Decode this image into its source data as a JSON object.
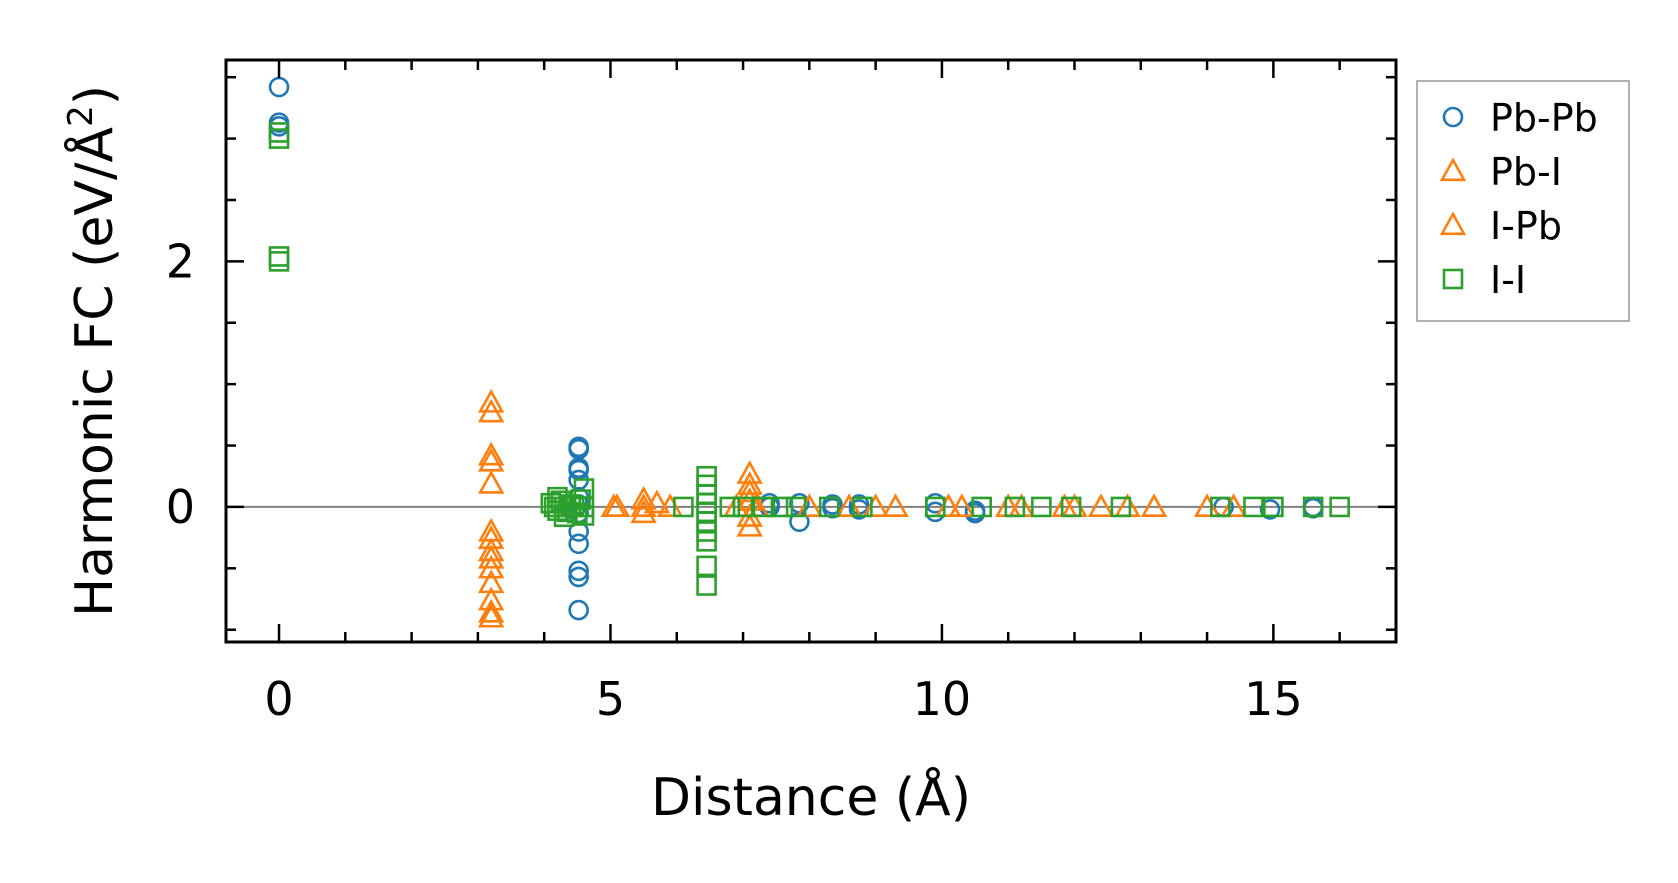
{
  "chart_data": {
    "type": "scatter",
    "title": "",
    "xlabel": "Distance (Å)",
    "ylabel_main": "Harmonic FC (eV/Å",
    "ylabel_sup": "2",
    "ylabel_end": ")",
    "xlim": [
      -0.8,
      16.85
    ],
    "ylim": [
      -1.1,
      3.64
    ],
    "xticks": [
      0,
      5,
      10,
      15
    ],
    "xtick_labels": [
      "0",
      "5",
      "10",
      "15"
    ],
    "yticks": [
      0,
      2
    ],
    "ytick_labels": [
      "0",
      "2"
    ],
    "zero_line": true,
    "legend_position": "outside-right",
    "series": [
      {
        "name": "Pb-Pb",
        "marker": "circle",
        "color": "#1f77b4",
        "points": [
          [
            0,
            3.42
          ],
          [
            0,
            3.13
          ],
          [
            0,
            3.1
          ],
          [
            4.52,
            0.49
          ],
          [
            4.52,
            0.47
          ],
          [
            4.52,
            0.32
          ],
          [
            4.52,
            0.3
          ],
          [
            4.52,
            0.22
          ],
          [
            4.52,
            0.08
          ],
          [
            4.52,
            0.02
          ],
          [
            4.52,
            -0.05
          ],
          [
            4.52,
            -0.2
          ],
          [
            4.52,
            -0.3
          ],
          [
            4.52,
            -0.52
          ],
          [
            4.52,
            -0.57
          ],
          [
            4.52,
            -0.84
          ],
          [
            7.4,
            0.03
          ],
          [
            7.4,
            0.0
          ],
          [
            7.85,
            0.03
          ],
          [
            7.85,
            -0.12
          ],
          [
            8.35,
            0.02
          ],
          [
            8.35,
            -0.01
          ],
          [
            8.75,
            0.02
          ],
          [
            8.75,
            -0.02
          ],
          [
            9.9,
            0.03
          ],
          [
            9.9,
            -0.04
          ],
          [
            10.5,
            -0.03
          ],
          [
            10.5,
            -0.05
          ],
          [
            14.25,
            0.0
          ],
          [
            14.95,
            -0.02
          ],
          [
            15.6,
            0.0
          ],
          [
            15.6,
            -0.01
          ]
        ]
      },
      {
        "name": "Pb-I",
        "marker": "triangle",
        "color": "#ff7f0e",
        "points": [
          [
            3.2,
            0.85
          ],
          [
            3.2,
            0.77
          ],
          [
            3.2,
            0.42
          ],
          [
            3.2,
            0.37
          ],
          [
            3.2,
            0.19
          ],
          [
            3.2,
            -0.2
          ],
          [
            3.2,
            -0.26
          ],
          [
            3.2,
            -0.36
          ],
          [
            3.2,
            -0.42
          ],
          [
            3.2,
            -0.5
          ],
          [
            3.2,
            -0.62
          ],
          [
            3.2,
            -0.76
          ],
          [
            3.2,
            -0.86
          ],
          [
            3.2,
            -0.9
          ],
          [
            5.1,
            0.0
          ],
          [
            5.5,
            0.06
          ],
          [
            5.5,
            0.0
          ],
          [
            5.5,
            -0.05
          ],
          [
            5.7,
            0.03
          ],
          [
            5.9,
            0.0
          ],
          [
            7.1,
            0.27
          ],
          [
            7.1,
            0.18
          ],
          [
            7.1,
            0.12
          ],
          [
            7.1,
            0.05
          ],
          [
            7.1,
            -0.08
          ],
          [
            7.1,
            -0.16
          ],
          [
            7.2,
            0.0
          ],
          [
            8.6,
            0.0
          ],
          [
            9.3,
            0.0
          ],
          [
            10.3,
            0.0
          ],
          [
            11.2,
            0.0
          ],
          [
            11.85,
            0.0
          ],
          [
            12.4,
            0.0
          ],
          [
            13.2,
            0.0
          ],
          [
            14.4,
            0.0
          ]
        ]
      },
      {
        "name": "I-Pb",
        "marker": "triangle",
        "color": "#ff7f0e",
        "points": [
          [
            5.05,
            0.0
          ],
          [
            6.9,
            0.0
          ],
          [
            8.0,
            0.0
          ],
          [
            9.0,
            0.0
          ],
          [
            10.1,
            0.0
          ],
          [
            11.0,
            0.0
          ],
          [
            12.0,
            0.0
          ],
          [
            12.8,
            0.0
          ],
          [
            14.0,
            0.0
          ]
        ]
      },
      {
        "name": "I-I",
        "marker": "square",
        "color": "#2ca02c",
        "points": [
          [
            0,
            3.05
          ],
          [
            0,
            3.0
          ],
          [
            0,
            2.04
          ],
          [
            0,
            2.0
          ],
          [
            4.1,
            0.03
          ],
          [
            4.15,
            0.0
          ],
          [
            4.2,
            -0.03
          ],
          [
            4.25,
            0.05
          ],
          [
            4.3,
            0.0
          ],
          [
            4.35,
            -0.04
          ],
          [
            4.4,
            0.02
          ],
          [
            4.45,
            0.0
          ],
          [
            4.5,
            -0.05
          ],
          [
            4.55,
            0.06
          ],
          [
            4.6,
            0.15
          ],
          [
            4.6,
            0.0
          ],
          [
            4.6,
            -0.07
          ],
          [
            4.2,
            0.08
          ],
          [
            4.3,
            -0.08
          ],
          [
            6.45,
            0.25
          ],
          [
            6.45,
            0.18
          ],
          [
            6.45,
            0.1
          ],
          [
            6.45,
            0.03
          ],
          [
            6.45,
            -0.04
          ],
          [
            6.45,
            -0.12
          ],
          [
            6.45,
            -0.2
          ],
          [
            6.45,
            -0.28
          ],
          [
            6.45,
            -0.48
          ],
          [
            6.45,
            -0.64
          ],
          [
            6.1,
            0.0
          ],
          [
            6.8,
            0.0
          ],
          [
            7.0,
            0.0
          ],
          [
            7.3,
            0.0
          ],
          [
            7.6,
            0.0
          ],
          [
            7.8,
            0.0
          ],
          [
            8.3,
            0.0
          ],
          [
            8.8,
            0.0
          ],
          [
            9.9,
            0.0
          ],
          [
            10.6,
            0.0
          ],
          [
            11.1,
            0.0
          ],
          [
            11.5,
            0.0
          ],
          [
            11.95,
            0.0
          ],
          [
            12.7,
            0.0
          ],
          [
            14.2,
            0.0
          ],
          [
            14.7,
            0.0
          ],
          [
            15.0,
            0.0
          ],
          [
            15.6,
            0.0
          ],
          [
            16.0,
            0.0
          ]
        ]
      }
    ]
  }
}
